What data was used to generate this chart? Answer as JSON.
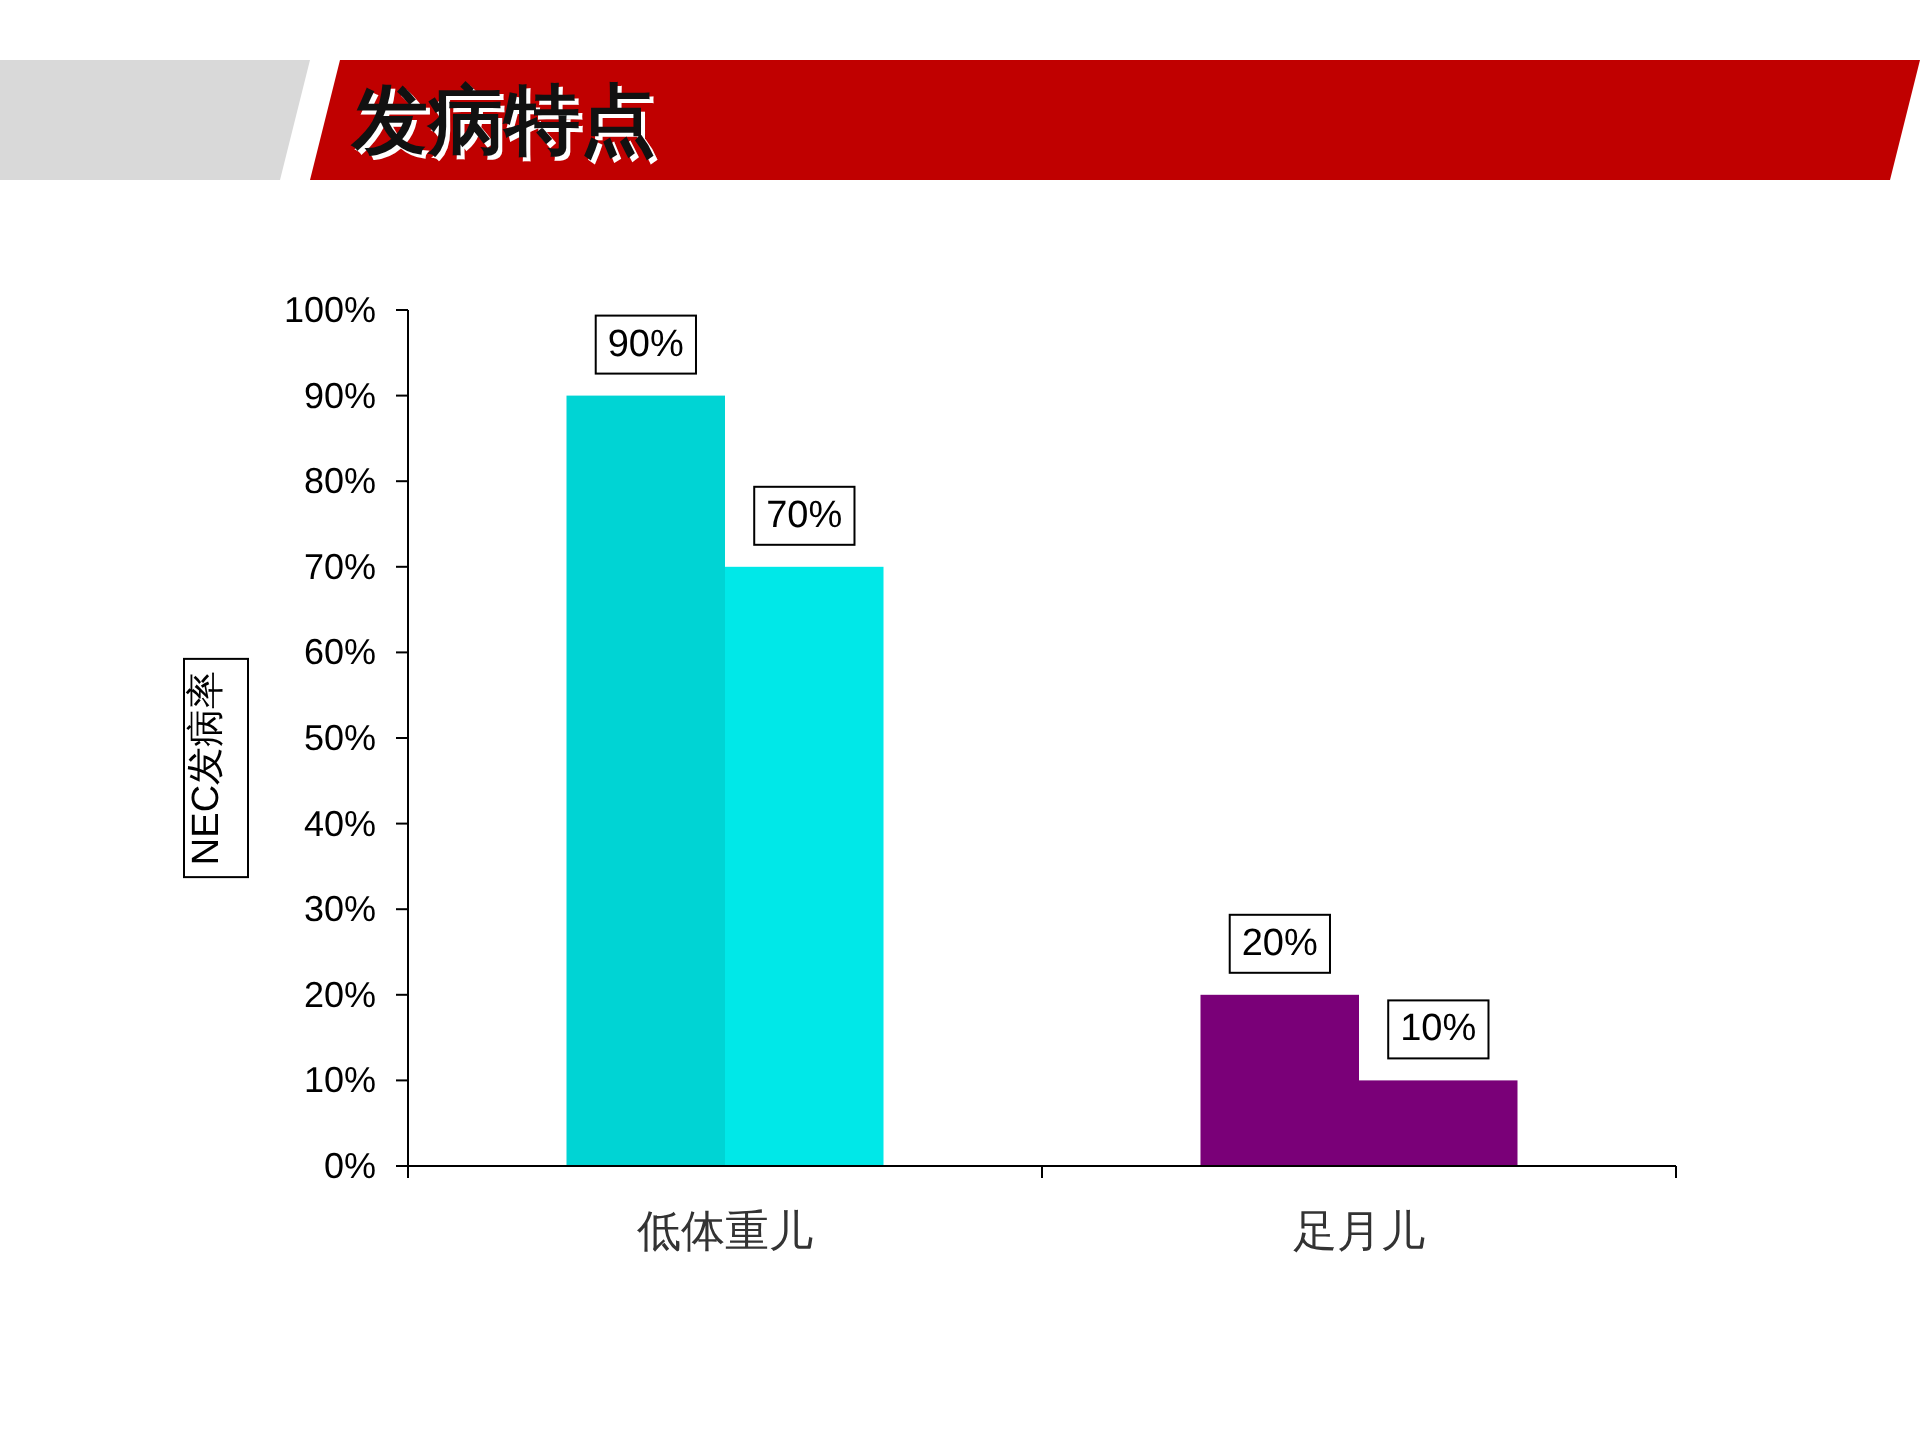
{
  "chart_data": {
    "type": "bar",
    "title": "发病特点",
    "ylabel": "NEC发病率",
    "categories": [
      "低体重儿",
      "足月儿"
    ],
    "series": [
      {
        "colors": [
          "#00d4d4",
          "#7a0078"
        ],
        "values": [
          90,
          20
        ],
        "value_labels": [
          "90%",
          "20%"
        ]
      },
      {
        "colors": [
          "#00e8e8",
          "#7a0078"
        ],
        "values": [
          70,
          10
        ],
        "value_labels": [
          "70%",
          "10%"
        ]
      }
    ],
    "ylim": [
      0,
      100
    ],
    "yticks": [
      {
        "value": 0,
        "label": "0%"
      },
      {
        "value": 10,
        "label": "10%"
      },
      {
        "value": 20,
        "label": "20%"
      },
      {
        "value": 30,
        "label": "30%"
      },
      {
        "value": 40,
        "label": "40%"
      },
      {
        "value": 50,
        "label": "50%"
      },
      {
        "value": 60,
        "label": "60%"
      },
      {
        "value": 70,
        "label": "70%"
      },
      {
        "value": 80,
        "label": "80%"
      },
      {
        "value": 90,
        "label": "90%"
      },
      {
        "value": 100,
        "label": "100%"
      }
    ],
    "grid": false
  }
}
